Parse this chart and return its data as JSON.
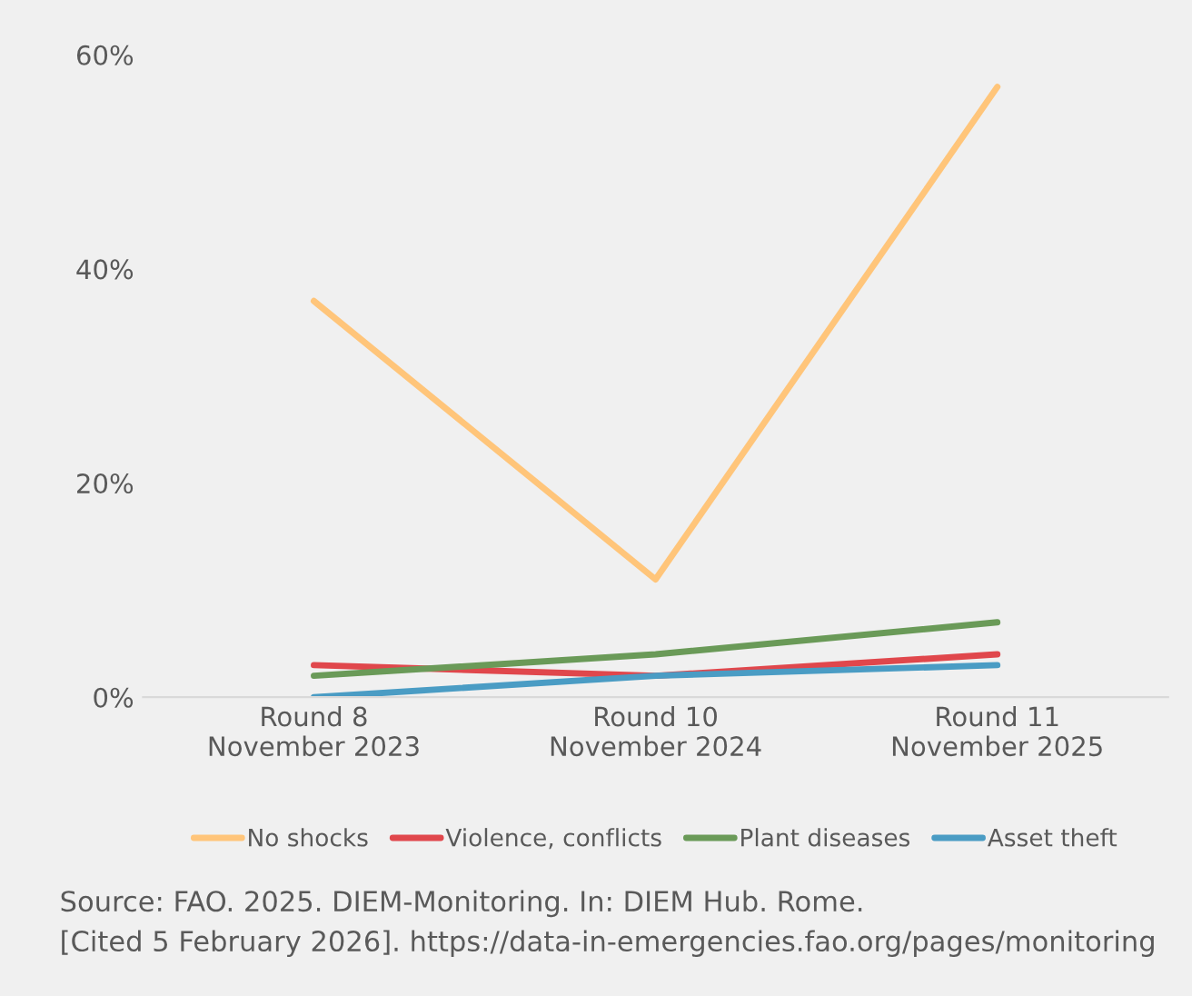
{
  "chart_data": {
    "type": "line",
    "categories": [
      "Round 8\nNovember 2023",
      "Round 10\nNovember 2024",
      "Round 11\nNovember 2025"
    ],
    "series": [
      {
        "name": "No shocks",
        "color": "#ffc57a",
        "values": [
          37,
          11,
          57
        ]
      },
      {
        "name": "Violence, conflicts",
        "color": "#e0474c",
        "values": [
          3,
          2,
          4
        ]
      },
      {
        "name": "Plant diseases",
        "color": "#6a9a58",
        "values": [
          2,
          4,
          7
        ]
      },
      {
        "name": "Asset theft",
        "color": "#4a9cc4",
        "values": [
          0,
          2,
          3
        ]
      }
    ],
    "ylim": [
      0,
      60
    ],
    "yticks": [
      {
        "value": 0,
        "label": "0%"
      },
      {
        "value": 20,
        "label": "20%"
      },
      {
        "value": 40,
        "label": "40%"
      },
      {
        "value": 60,
        "label": "60%"
      }
    ],
    "grid": false,
    "legend": "bottom",
    "marker": "none",
    "line_style": "solid",
    "annotations": [
      "Source: FAO. 2025. DIEM-Monitoring. In: DIEM Hub. Rome.",
      "[Cited 5 February 2026]. https://data-in-emergencies.fao.org/pages/monitoring"
    ]
  }
}
